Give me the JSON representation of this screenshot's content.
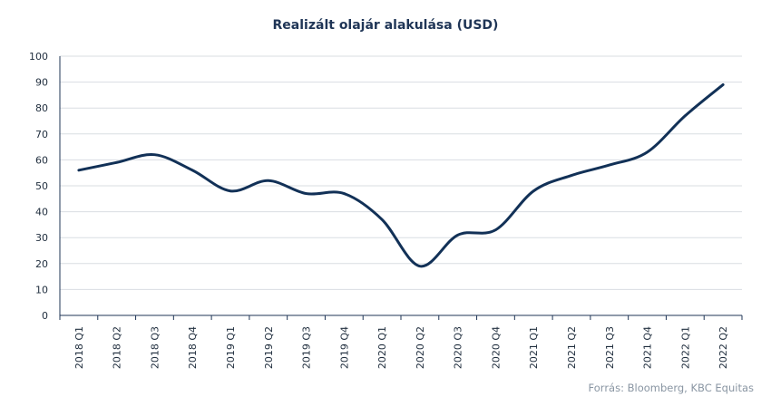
{
  "chart_data": {
    "type": "line",
    "title": "Realizált olajár alakulása (USD)",
    "source": "Forrás: Bloomberg, KBC Equitas",
    "categories": [
      "2018 Q1",
      "2018 Q2",
      "2018 Q3",
      "2018 Q4",
      "2019 Q1",
      "2019 Q2",
      "2019 Q3",
      "2019 Q4",
      "2020 Q1",
      "2020 Q2",
      "2020 Q3",
      "2020 Q4",
      "2021 Q1",
      "2021 Q2",
      "2021 Q3",
      "2021 Q4",
      "2022 Q1",
      "2022 Q2"
    ],
    "series": [
      {
        "values": [
          56,
          59,
          62,
          56,
          48,
          52,
          47,
          47,
          37,
          19,
          31,
          33,
          48,
          54,
          58,
          63,
          77,
          89
        ]
      }
    ],
    "ylim": [
      0,
      100
    ],
    "yticks": [
      0,
      10,
      20,
      30,
      40,
      50,
      60,
      70,
      80,
      90,
      100
    ],
    "grid": true,
    "colors": {
      "series": "#123157",
      "title": "#1f3556",
      "grid": "#d9dde2"
    }
  }
}
